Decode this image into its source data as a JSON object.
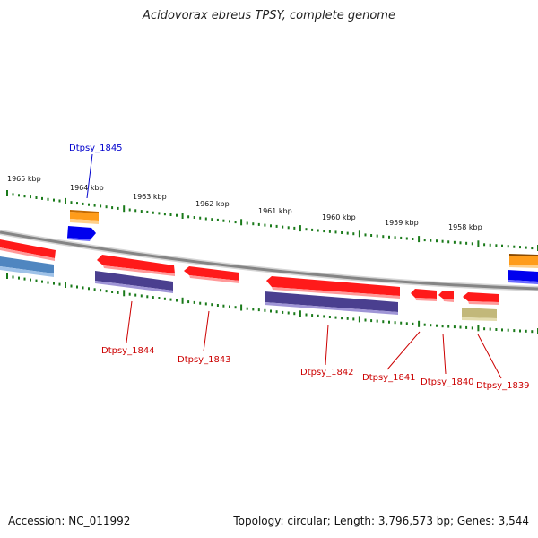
{
  "title": "Acidovorax ebreus TPSY, complete genome",
  "footer": {
    "accession": "Accession: NC_011992",
    "summary": "Topology: circular; Length: 3,796,573 bp; Genes: 3,544"
  },
  "scale_labels": [
    "1965 kbp",
    "1964 kbp",
    "1963 kbp",
    "1962 kbp",
    "1961 kbp",
    "1960 kbp",
    "1959 kbp",
    "1958 kbp"
  ],
  "gene_labels": {
    "dtpsy_1845": "Dtpsy_1845",
    "dtpsy_1844": "Dtpsy_1844",
    "dtpsy_1843": "Dtpsy_1843",
    "dtpsy_1842": "Dtpsy_1842",
    "dtpsy_1841": "Dtpsy_1841",
    "dtpsy_1840": "Dtpsy_1840",
    "dtpsy_1839": "Dtpsy_1839"
  },
  "colors": {
    "backbone": "#888888",
    "tick": "#1a7a1a",
    "cds_red": "#ff1a1a",
    "gene_purple": "#4a3f8f",
    "blue": "#0000ee",
    "orange": "#ff9900",
    "steel_blue": "#4f86c0",
    "khaki": "#c2b87a",
    "label_red": "#cc0000",
    "label_blue": "#0000cc"
  }
}
